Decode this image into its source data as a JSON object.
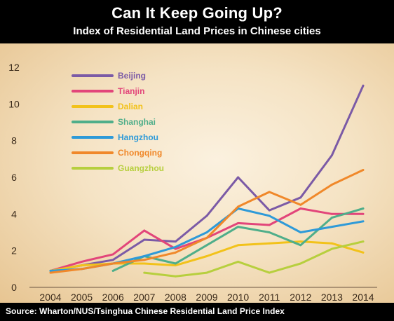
{
  "title": "Can It Keep Going Up?",
  "subtitle": "Index of Residential Land Prices in Chinese cities",
  "source": "Source: Wharton/NUS/Tsinghua Chinese Residential Land Price Index",
  "chart_data": {
    "type": "line",
    "x": [
      2004,
      2005,
      2006,
      2007,
      2008,
      2009,
      2010,
      2011,
      2012,
      2013,
      2014
    ],
    "xlabel": "",
    "ylabel": "",
    "ylim": [
      0,
      12
    ],
    "yticks": [
      0,
      2,
      4,
      6,
      8,
      10,
      12
    ],
    "grid": false,
    "legend_position": "top-left",
    "series": [
      {
        "name": "Beijing",
        "color": "#7b5aa6",
        "values": [
          0.9,
          1.2,
          1.5,
          2.6,
          2.5,
          3.9,
          6.0,
          4.2,
          4.9,
          7.2,
          11.0
        ]
      },
      {
        "name": "Tianjin",
        "color": "#e2457a",
        "values": [
          0.9,
          1.4,
          1.8,
          3.1,
          2.1,
          2.7,
          3.5,
          3.4,
          4.3,
          4.0,
          4.0
        ]
      },
      {
        "name": "Dalian",
        "color": "#f2c21a",
        "values": [
          0.9,
          1.2,
          1.3,
          1.3,
          1.2,
          1.7,
          2.3,
          2.4,
          2.5,
          2.4,
          1.9
        ]
      },
      {
        "name": "Shanghai",
        "color": "#4fae8a",
        "values": [
          null,
          null,
          0.9,
          1.7,
          1.3,
          2.3,
          3.3,
          3.0,
          2.3,
          3.8,
          4.3
        ]
      },
      {
        "name": "Hangzhou",
        "color": "#2e9ad8",
        "values": [
          0.9,
          1.0,
          1.3,
          1.7,
          2.2,
          3.0,
          4.3,
          3.9,
          3.0,
          3.3,
          3.6
        ]
      },
      {
        "name": "Chongqing",
        "color": "#f0882a",
        "values": [
          0.8,
          1.0,
          1.3,
          1.5,
          1.9,
          2.7,
          4.4,
          5.2,
          4.5,
          5.6,
          6.4
        ]
      },
      {
        "name": "Guangzhou",
        "color": "#b7cf3e",
        "values": [
          null,
          null,
          null,
          0.8,
          0.6,
          0.8,
          1.4,
          0.8,
          1.3,
          2.1,
          2.5
        ]
      }
    ]
  }
}
